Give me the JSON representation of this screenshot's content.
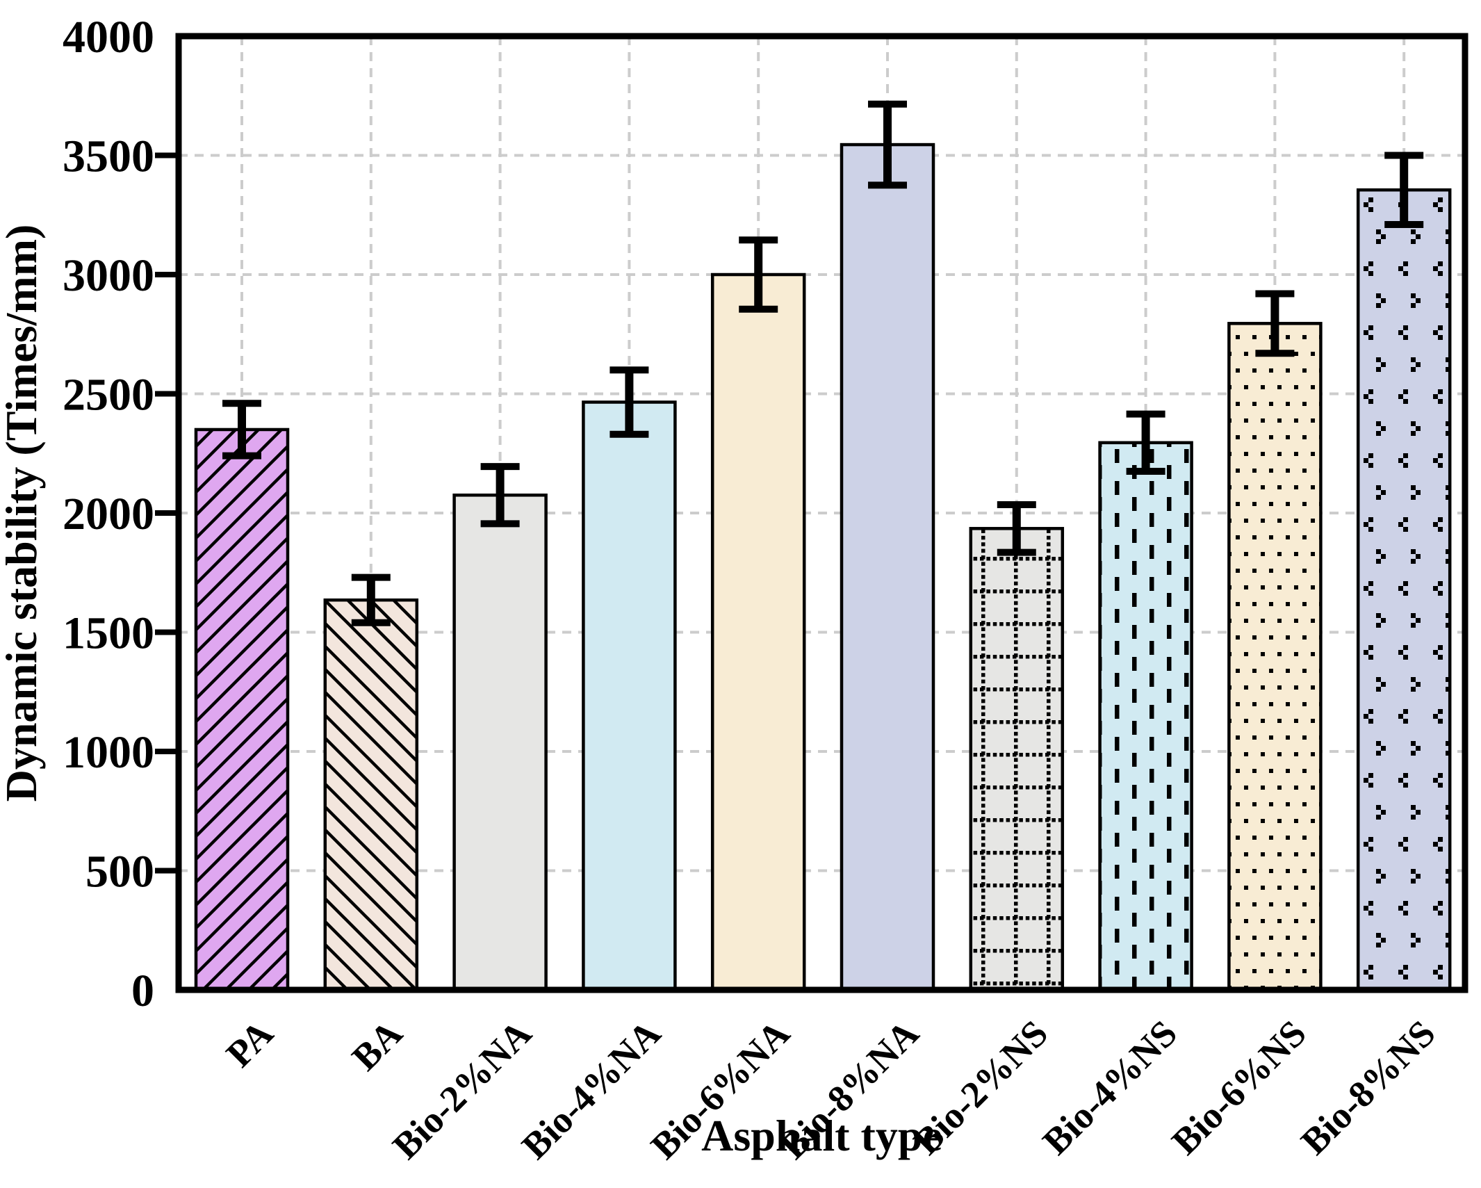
{
  "figure": {
    "background": "#ffffff"
  },
  "chart_data": {
    "type": "bar",
    "title": "",
    "xlabel": "Asphalt type",
    "ylabel": "Dynamic stability (Times/mm)",
    "ylim": [
      0,
      4000
    ],
    "ytick_interval": 500,
    "ytick_labels": [
      "0",
      "500",
      "1000",
      "1500",
      "2000",
      "2500",
      "3000",
      "3500",
      "4000"
    ],
    "grid": {
      "horizontal": true,
      "vertical": true,
      "style": "dashed",
      "color": "#cccccc"
    },
    "legend": "none",
    "categories": [
      "PA",
      "BA",
      "Bio-2%NA",
      "Bio-4%NA",
      "Bio-6%NA",
      "Bio-8%NA",
      "Bio-2%NS",
      "Bio-4%NS",
      "Bio-6%NS",
      "Bio-8%NS"
    ],
    "values": [
      2350,
      1635,
      2075,
      2465,
      3000,
      3545,
      1935,
      2295,
      2795,
      3355
    ],
    "errors": [
      110,
      95,
      120,
      135,
      145,
      170,
      100,
      120,
      125,
      145
    ],
    "bars": [
      {
        "category": "PA",
        "value": 2350,
        "error": 110,
        "fill": "#dfa7f0",
        "pattern": "hatch-fwd"
      },
      {
        "category": "BA",
        "value": 1635,
        "error": 95,
        "fill": "#f3e6dd",
        "pattern": "hatch-back"
      },
      {
        "category": "Bio-2%NA",
        "value": 2075,
        "error": 120,
        "fill": "#e6e6e4",
        "pattern": "none"
      },
      {
        "category": "Bio-4%NA",
        "value": 2465,
        "error": 135,
        "fill": "#d1eaf2",
        "pattern": "none"
      },
      {
        "category": "Bio-6%NA",
        "value": 3000,
        "error": 145,
        "fill": "#f8ecd4",
        "pattern": "none"
      },
      {
        "category": "Bio-8%NA",
        "value": 3545,
        "error": 170,
        "fill": "#cdd2e7",
        "pattern": "none"
      },
      {
        "category": "Bio-2%NS",
        "value": 1935,
        "error": 100,
        "fill": "#e6e6e4",
        "pattern": "dot-grid"
      },
      {
        "category": "Bio-4%NS",
        "value": 2295,
        "error": 120,
        "fill": "#d1eaf2",
        "pattern": "dash-vert"
      },
      {
        "category": "Bio-6%NS",
        "value": 2795,
        "error": 125,
        "fill": "#f8ecd4",
        "pattern": "square-dots"
      },
      {
        "category": "Bio-8%NS",
        "value": 3355,
        "error": 145,
        "fill": "#cdd2e7",
        "pattern": "chevrons"
      }
    ],
    "colors": {
      "bar_outline": "#000000",
      "error_bar": "#000000",
      "axis": "#000000",
      "gridline": "#cccccc",
      "text": "#000000"
    }
  }
}
